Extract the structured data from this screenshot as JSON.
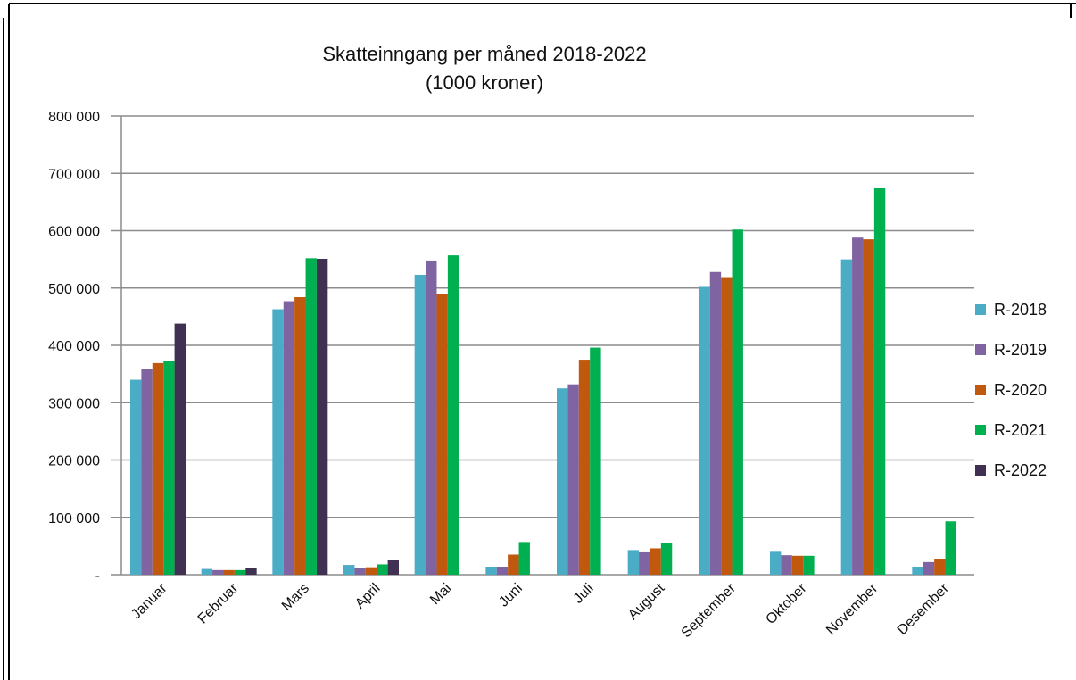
{
  "chart_data": {
    "type": "bar",
    "title": "Skatteinngang per måned 2018-2022",
    "subtitle": "(1000 kroner)",
    "xlabel": "",
    "ylabel": "",
    "ylim": [
      0,
      800000
    ],
    "y_ticks": [
      0,
      100000,
      200000,
      300000,
      400000,
      500000,
      600000,
      700000,
      800000
    ],
    "y_tick_labels": [
      "-",
      "100 000",
      "200 000",
      "300 000",
      "400 000",
      "500 000",
      "600 000",
      "700 000",
      "800 000"
    ],
    "grid": true,
    "legend_position": "right",
    "categories": [
      "Januar",
      "Februar",
      "Mars",
      "April",
      "Mai",
      "Juni",
      "Juli",
      "August",
      "September",
      "Oktober",
      "November",
      "Desember"
    ],
    "series": [
      {
        "name": "R-2018",
        "color": "#4bacc6",
        "values": [
          340000,
          10000,
          463000,
          17000,
          523000,
          14000,
          325000,
          43000,
          502000,
          40000,
          550000,
          14000
        ]
      },
      {
        "name": "R-2019",
        "color": "#8064a2",
        "values": [
          358000,
          8000,
          477000,
          12000,
          548000,
          14000,
          332000,
          39000,
          528000,
          34000,
          588000,
          22000
        ]
      },
      {
        "name": "R-2020",
        "color": "#c0580e",
        "values": [
          369000,
          8000,
          484000,
          13000,
          490000,
          35000,
          375000,
          46000,
          519000,
          33000,
          585000,
          28000
        ]
      },
      {
        "name": "R-2021",
        "color": "#00b050",
        "values": [
          373000,
          8000,
          552000,
          18000,
          557000,
          57000,
          396000,
          55000,
          602000,
          33000,
          674000,
          93000
        ]
      },
      {
        "name": "R-2022",
        "color": "#403152",
        "values": [
          438000,
          11000,
          551000,
          25000,
          null,
          null,
          null,
          null,
          null,
          null,
          null,
          null
        ]
      }
    ]
  }
}
